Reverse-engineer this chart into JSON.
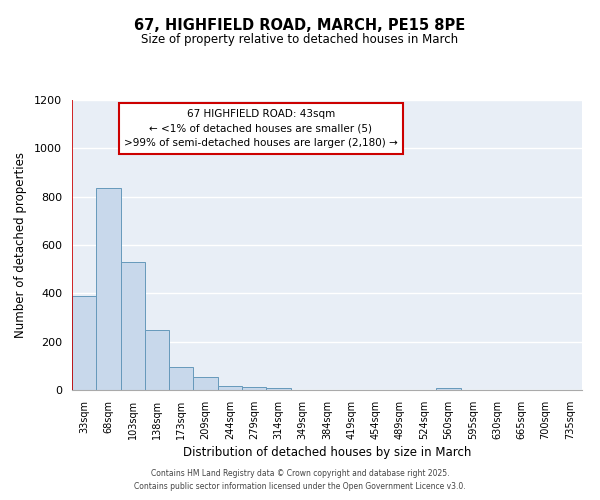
{
  "title": "67, HIGHFIELD ROAD, MARCH, PE15 8PE",
  "subtitle": "Size of property relative to detached houses in March",
  "xlabel": "Distribution of detached houses by size in March",
  "ylabel": "Number of detached properties",
  "bar_labels": [
    "33sqm",
    "68sqm",
    "103sqm",
    "138sqm",
    "173sqm",
    "209sqm",
    "244sqm",
    "279sqm",
    "314sqm",
    "349sqm",
    "384sqm",
    "419sqm",
    "454sqm",
    "489sqm",
    "524sqm",
    "560sqm",
    "595sqm",
    "630sqm",
    "665sqm",
    "700sqm",
    "735sqm"
  ],
  "bar_values": [
    390,
    835,
    530,
    248,
    97,
    52,
    18,
    13,
    8,
    0,
    0,
    0,
    0,
    0,
    0,
    7,
    0,
    0,
    0,
    0,
    0
  ],
  "bar_color": "#c8d8eb",
  "bar_edge_color": "#6699bb",
  "background_color": "#e8eef6",
  "grid_color": "#ffffff",
  "ylim": [
    0,
    1200
  ],
  "yticks": [
    0,
    200,
    400,
    600,
    800,
    1000,
    1200
  ],
  "annotation_box_text": [
    "67 HIGHFIELD ROAD: 43sqm",
    "← <1% of detached houses are smaller (5)",
    ">99% of semi-detached houses are larger (2,180) →"
  ],
  "annotation_box_edge_color": "#cc0000",
  "footnote1": "Contains HM Land Registry data © Crown copyright and database right 2025.",
  "footnote2": "Contains public sector information licensed under the Open Government Licence v3.0.",
  "fig_bg_color": "#ffffff"
}
